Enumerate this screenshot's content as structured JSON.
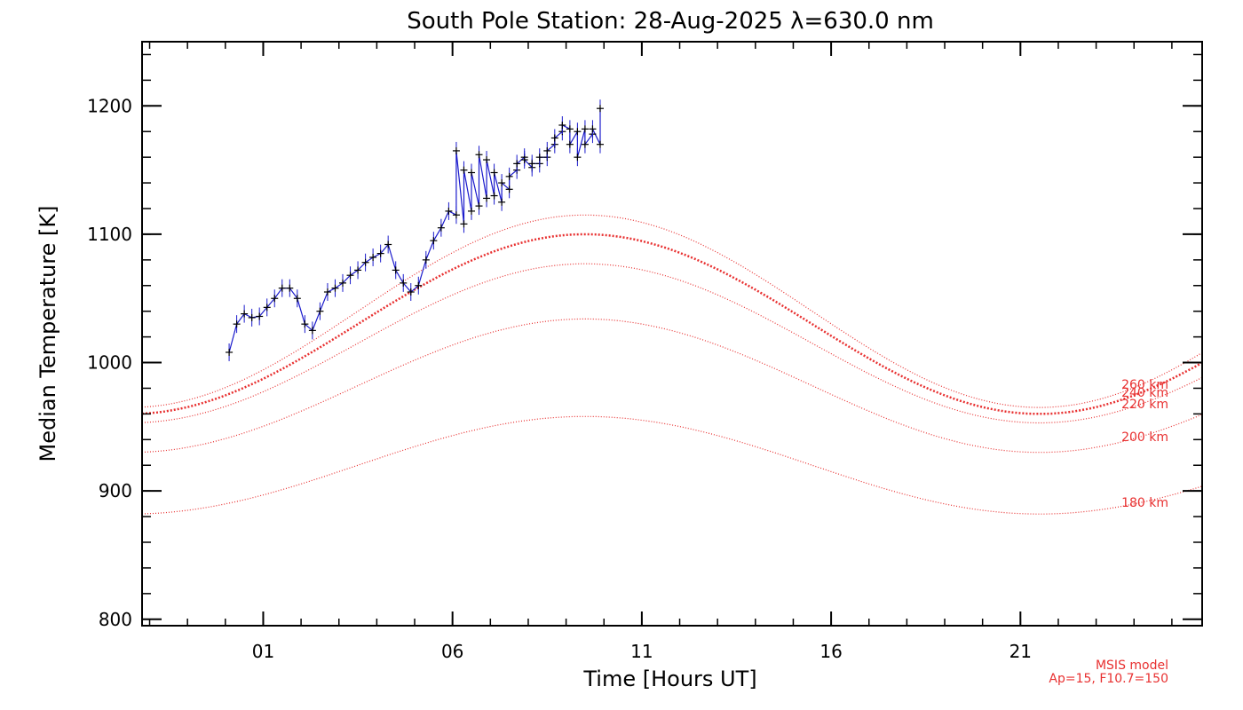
{
  "chart_data": {
    "type": "line",
    "title": "South Pole Station: 28-Aug-2025 λ=630.0 nm",
    "xlabel": "Time [Hours UT]",
    "ylabel": "Median Temperature [K]",
    "xlim": [
      -2.2,
      25.8
    ],
    "ylim": [
      795,
      1250
    ],
    "x_ticks": [
      {
        "value": 1,
        "label": "01"
      },
      {
        "value": 6,
        "label": "06"
      },
      {
        "value": 11,
        "label": "11"
      },
      {
        "value": 16,
        "label": "16"
      },
      {
        "value": 21,
        "label": "21"
      }
    ],
    "y_ticks": [
      {
        "value": 800,
        "label": "800"
      },
      {
        "value": 900,
        "label": "900"
      },
      {
        "value": 1000,
        "label": "1000"
      },
      {
        "value": 1100,
        "label": "1100"
      },
      {
        "value": 1200,
        "label": "1200"
      }
    ],
    "series": [
      {
        "color": "#000000",
        "error_color": "#1a1acc",
        "marker": "+",
        "points": [
          [
            0.1,
            1008
          ],
          [
            0.3,
            1030
          ],
          [
            0.5,
            1038
          ],
          [
            0.7,
            1035
          ],
          [
            0.9,
            1036
          ],
          [
            1.1,
            1043
          ],
          [
            1.3,
            1050
          ],
          [
            1.5,
            1058
          ],
          [
            1.7,
            1058
          ],
          [
            1.9,
            1050
          ],
          [
            2.1,
            1030
          ],
          [
            2.3,
            1025
          ],
          [
            2.5,
            1040
          ],
          [
            2.7,
            1055
          ],
          [
            2.9,
            1058
          ],
          [
            3.1,
            1062
          ],
          [
            3.3,
            1068
          ],
          [
            3.5,
            1072
          ],
          [
            3.7,
            1078
          ],
          [
            3.9,
            1082
          ],
          [
            4.1,
            1085
          ],
          [
            4.3,
            1092
          ],
          [
            4.5,
            1072
          ],
          [
            4.7,
            1062
          ],
          [
            4.9,
            1055
          ],
          [
            5.1,
            1060
          ],
          [
            5.3,
            1080
          ],
          [
            5.5,
            1095
          ],
          [
            5.7,
            1105
          ],
          [
            5.9,
            1118
          ],
          [
            6.1,
            1115
          ],
          [
            6.3,
            1108
          ],
          [
            6.5,
            1118
          ],
          [
            6.7,
            1122
          ],
          [
            6.9,
            1128
          ],
          [
            7.1,
            1130
          ],
          [
            7.3,
            1125
          ],
          [
            7.5,
            1135
          ],
          [
            7.7,
            1150
          ],
          [
            7.9,
            1160
          ],
          [
            8.1,
            1152
          ],
          [
            8.3,
            1155
          ],
          [
            8.5,
            1160
          ],
          [
            8.7,
            1170
          ],
          [
            8.9,
            1180
          ],
          [
            9.1,
            1182
          ],
          [
            9.3,
            1180
          ],
          [
            9.5,
            1182
          ],
          [
            9.7,
            1178
          ],
          [
            9.9,
            1170
          ],
          [
            6.1,
            1165
          ],
          [
            6.3,
            1150
          ],
          [
            6.5,
            1148
          ],
          [
            6.7,
            1162
          ],
          [
            6.9,
            1158
          ],
          [
            7.1,
            1148
          ],
          [
            7.3,
            1140
          ],
          [
            7.5,
            1145
          ],
          [
            7.7,
            1155
          ],
          [
            7.9,
            1158
          ],
          [
            8.1,
            1155
          ],
          [
            8.3,
            1160
          ],
          [
            8.5,
            1165
          ],
          [
            8.7,
            1175
          ],
          [
            8.9,
            1185
          ],
          [
            9.1,
            1170
          ],
          [
            9.3,
            1160
          ],
          [
            9.5,
            1170
          ],
          [
            9.7,
            1182
          ],
          [
            9.9,
            1198
          ]
        ]
      }
    ],
    "models": [
      {
        "label": "260 km",
        "base": 1040,
        "amp": 75,
        "color": "#e83030",
        "bold": false
      },
      {
        "label": "240 km",
        "base": 1030,
        "amp": 70,
        "color": "#e83030",
        "bold": true
      },
      {
        "label": "220 km",
        "base": 1015,
        "amp": 62,
        "color": "#e83030",
        "bold": false
      },
      {
        "label": "200 km",
        "base": 982,
        "amp": 52,
        "color": "#e83030",
        "bold": false
      },
      {
        "label": "180 km",
        "base": 920,
        "amp": 38,
        "color": "#e83030",
        "bold": false
      }
    ],
    "annotation": {
      "line1": "MSIS model",
      "line2": "Ap=15, F10.7=150"
    }
  }
}
